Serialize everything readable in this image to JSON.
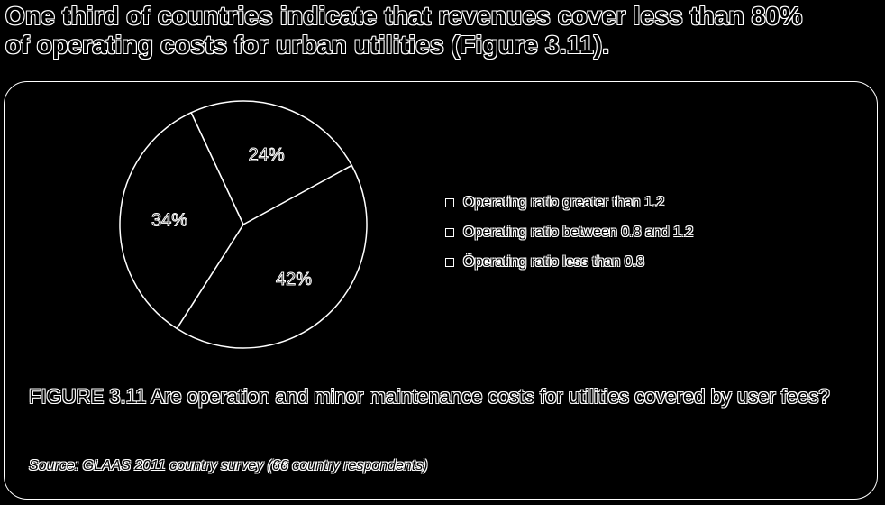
{
  "headline": {
    "line1": "One third of countries indicate that revenues cover less than 80%",
    "line2": "of operating costs for urban utilities (Figure 3.11)."
  },
  "chart_data": {
    "type": "pie",
    "categories": [
      "Operating ratio greater than 1.2",
      "Operating ratio between 0.8 and 1.2",
      "Operating ratio less than 0.8"
    ],
    "values": [
      24,
      42,
      34
    ],
    "labels": [
      "24%",
      "42%",
      "34%"
    ],
    "legend": [
      "Operating ratio greater than 1.2",
      "Operating ratio between 0.8 and 1.2",
      "Öperating ratio less than 0.8"
    ],
    "legend_position": "right",
    "colors": [
      "#000000",
      "#000000",
      "#000000"
    ],
    "outline_color": "#ffffff"
  },
  "caption": "FIGURE 3.11 Are operation and minor maintenance costs for utilities covered by user fees?",
  "source": "Source: GLAAS 2011 country survey (66 country respondents)"
}
